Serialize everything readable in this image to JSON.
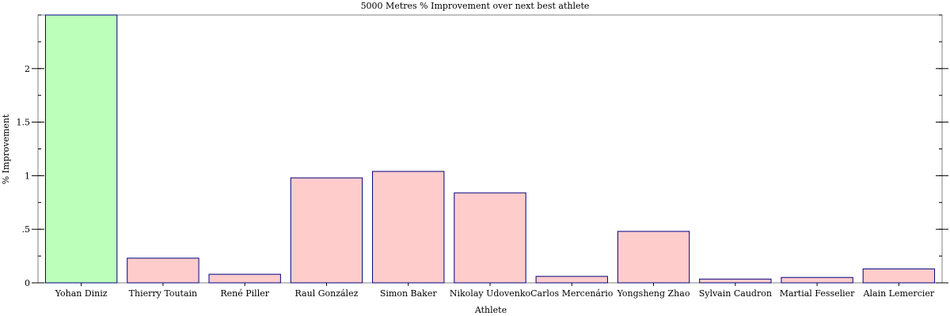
{
  "chart_data": {
    "type": "bar",
    "title": "5000 Metres % Improvement over next best athlete",
    "xlabel": "Athlete",
    "ylabel": "% Improvement",
    "ylim": [
      0,
      2.5
    ],
    "yticks": [
      0,
      0.5,
      1,
      1.5,
      2
    ],
    "ytick_labels": [
      "0",
      ".5",
      "1",
      "1.5",
      "2"
    ],
    "categories": [
      "Yohan Diniz",
      "Thierry Toutain",
      "René Piller",
      "Raul González",
      "Simon Baker",
      "Nikolay Udovenko",
      "Carlos Mercenário",
      "Yongsheng Zhao",
      "Sylvain Caudron",
      "Martial Fesselier",
      "Alain Lemercier"
    ],
    "values": [
      2.5,
      0.23,
      0.08,
      0.98,
      1.04,
      0.84,
      0.06,
      0.48,
      0.035,
      0.05,
      0.13
    ],
    "bar_colors": [
      "#bbffbb",
      "#ffcccc",
      "#ffcccc",
      "#ffcccc",
      "#ffcccc",
      "#ffcccc",
      "#ffcccc",
      "#ffcccc",
      "#ffcccc",
      "#ffcccc",
      "#ffcccc"
    ],
    "bar_stroke": "#000080",
    "grid": false,
    "legend": "none"
  }
}
